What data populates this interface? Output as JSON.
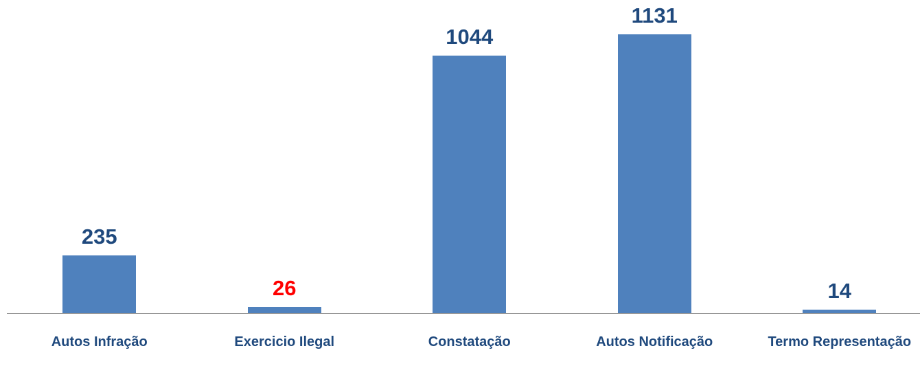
{
  "chart_data": {
    "type": "bar",
    "categories": [
      "Autos Infração",
      "Exercicio Ilegal",
      "Constatação",
      "Autos Notificação",
      "Termo Representação"
    ],
    "values": [
      235,
      26,
      1044,
      1131,
      14
    ],
    "color": "#4f81bd",
    "label_colors": [
      "#1f497d",
      "#ff0000",
      "#1f497d",
      "#1f497d",
      "#1f497d"
    ]
  }
}
